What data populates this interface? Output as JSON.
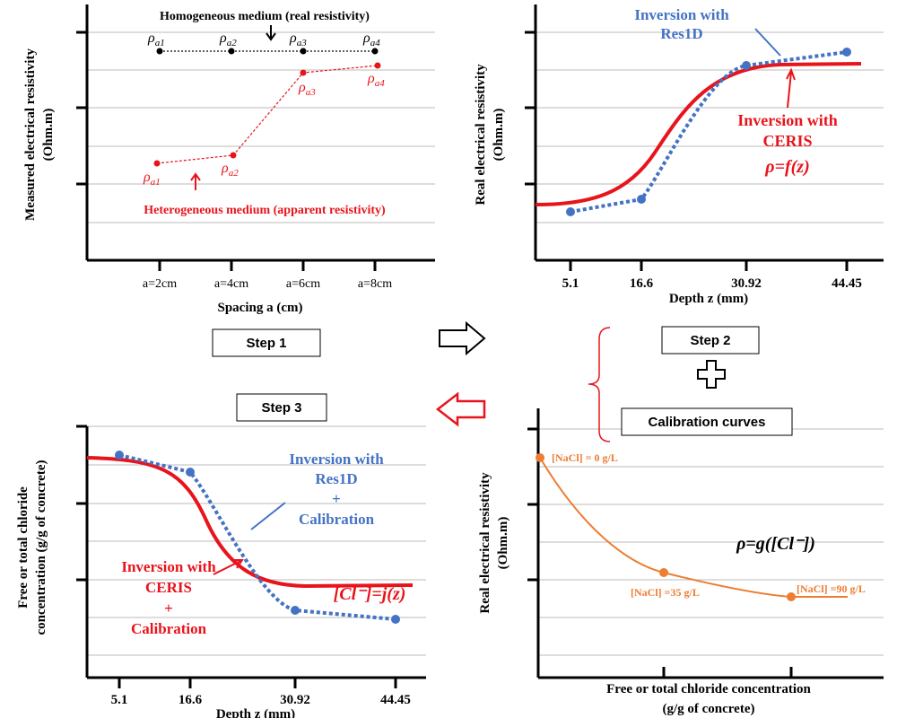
{
  "panel1": {
    "step": "Step 1",
    "y_label": [
      "Measured electrical resistivity",
      "(Ohm.m)"
    ],
    "x_label": "Spacing a (cm)",
    "x_ticks": [
      "a=2cm",
      "a=4cm",
      "a=6cm",
      "a=8cm"
    ],
    "homogeneous_label": "Homogeneous medium (real resistivity)",
    "heterogeneous_label": "Heterogeneous medium (apparent resistivity)",
    "homogeneous_points": [
      {
        "symbol": "ρ",
        "sub": "a1"
      },
      {
        "symbol": "ρ",
        "sub": "a2"
      },
      {
        "symbol": "ρ",
        "sub": "a3"
      },
      {
        "symbol": "ρ",
        "sub": "a4"
      }
    ],
    "heterogeneous_points": [
      {
        "symbol": "ρ",
        "sub": "a1"
      },
      {
        "symbol": "ρ",
        "sub": "a2"
      },
      {
        "symbol": "ρ",
        "sub": "a3"
      },
      {
        "symbol": "ρ",
        "sub": "a4"
      }
    ]
  },
  "panel2": {
    "step": "Step 2",
    "y_label": [
      "Real electrical resistivity",
      "(Ohm.m)"
    ],
    "x_label": "Depth z (mm)",
    "x_ticks": [
      "5.1",
      "16.6",
      "30.92",
      "44.45"
    ],
    "res1d_label": [
      "Inversion with",
      "Res1D"
    ],
    "ceris_label": [
      "Inversion with",
      "CERIS",
      "ρ=f(z)"
    ]
  },
  "panel3": {
    "step": "Step 3",
    "y_label": [
      "Free or total chloride",
      "concentration (g/g of concrete)"
    ],
    "x_label": "Depth z (mm)",
    "x_ticks": [
      "5.1",
      "16.6",
      "30.92",
      "44.45"
    ],
    "res1d_label": [
      "Inversion with",
      "Res1D",
      "+",
      "Calibration"
    ],
    "ceris_label": [
      "Inversion with",
      "CERIS",
      "+",
      "Calibration"
    ],
    "equation": "[Cl⁻]=j(z)"
  },
  "panel4": {
    "title": "Calibration curves",
    "y_label": [
      "Real electrical resistivity",
      "(Ohm.m)"
    ],
    "x_label": [
      "Free or total chloride concentration",
      "(g/g of concrete)"
    ],
    "point_labels": [
      "[NaCl] = 0 g/L",
      "[NaCl] =35 g/L",
      "[NaCl] =90 g/L"
    ],
    "equation": "ρ=g([Cl⁻])"
  }
}
